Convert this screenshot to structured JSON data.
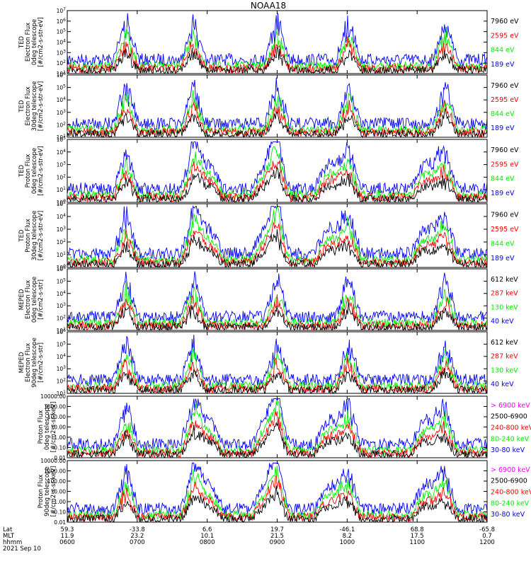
{
  "title": "NOAA18",
  "colors": {
    "blue": "#0000ff",
    "red": "#ff0000",
    "green": "#00ee00",
    "black": "#000000",
    "magenta": "#ff00ff"
  },
  "chart_data": [
    {
      "type": "line",
      "title": "",
      "ylabel": [
        "TED",
        "Electron Flux",
        "0deg telescope",
        "[#/cm2-s-str-eV]"
      ],
      "yticks": [
        "10^1",
        "10^2",
        "10^3",
        "10^4",
        "10^5",
        "10^6",
        "10^7"
      ],
      "series": [
        {
          "name": "7960 eV",
          "color": "black"
        },
        {
          "name": "2595 eV",
          "color": "red"
        },
        {
          "name": "844 eV",
          "color": "green"
        },
        {
          "name": "189 eV",
          "color": "blue"
        }
      ]
    },
    {
      "type": "line",
      "title": "",
      "ylabel": [
        "TED",
        "Electron Flux",
        "30deg telescope",
        "[#/cm2-s-str-eV]"
      ],
      "yticks": [
        "10^1",
        "10^2",
        "10^3",
        "10^4",
        "10^5",
        "10^6"
      ],
      "series": [
        {
          "name": "7960 eV",
          "color": "black"
        },
        {
          "name": "2595 eV",
          "color": "red"
        },
        {
          "name": "844 eV",
          "color": "green"
        },
        {
          "name": "189 eV",
          "color": "blue"
        }
      ]
    },
    {
      "type": "line",
      "title": "",
      "ylabel": [
        "TED",
        "Proton Flux",
        "0deg telescope",
        "[#/cm2-s-str-eV]"
      ],
      "yticks": [
        "10^0",
        "10^1",
        "10^2",
        "10^3",
        "10^4",
        "10^5"
      ],
      "series": [
        {
          "name": "7960 eV",
          "color": "black"
        },
        {
          "name": "2595 eV",
          "color": "red"
        },
        {
          "name": "844 eV",
          "color": "green"
        },
        {
          "name": "189 eV",
          "color": "blue"
        }
      ]
    },
    {
      "type": "line",
      "title": "",
      "ylabel": [
        "TED",
        "Proton Flux",
        "30deg telescope",
        "[#/cm2-s-str-eV]"
      ],
      "yticks": [
        "10^0",
        "10^1",
        "10^2",
        "10^3",
        "10^4",
        "10^5"
      ],
      "series": [
        {
          "name": "7960 eV",
          "color": "black"
        },
        {
          "name": "2595 eV",
          "color": "red"
        },
        {
          "name": "844 eV",
          "color": "green"
        },
        {
          "name": "189 eV",
          "color": "blue"
        }
      ]
    },
    {
      "type": "line",
      "title": "",
      "ylabel": [
        "MEPED",
        "Electron Flux",
        "0deg telescope",
        "[#/cm2-s-str]"
      ],
      "yticks": [
        "10^1",
        "10^2",
        "10^3",
        "10^4",
        "10^5",
        "10^6"
      ],
      "series": [
        {
          "name": "612 keV",
          "color": "black"
        },
        {
          "name": "287 keV",
          "color": "red"
        },
        {
          "name": "130 keV",
          "color": "green"
        },
        {
          "name": "40 keV",
          "color": "blue"
        }
      ]
    },
    {
      "type": "line",
      "title": "",
      "ylabel": [
        "MEPED",
        "Electron Flux",
        "90deg telescope",
        "[#/cm2-s-str]"
      ],
      "yticks": [
        "10^1",
        "10^2",
        "10^3",
        "10^4",
        "10^5",
        "10^6"
      ],
      "series": [
        {
          "name": "612 keV",
          "color": "black"
        },
        {
          "name": "287 keV",
          "color": "red"
        },
        {
          "name": "130 keV",
          "color": "green"
        },
        {
          "name": "40 keV",
          "color": "blue"
        }
      ]
    },
    {
      "type": "line",
      "title": "",
      "ylabel": [
        "Proton Flux",
        "0deg telescope",
        "[#/cm2-s-sr-keV]"
      ],
      "yticks": [
        "0.01",
        "0.10",
        "1.00",
        "10.00",
        "100.00",
        "1000.00",
        "10000.00"
      ],
      "series": [
        {
          "name": "> 6900 keV",
          "color": "magenta"
        },
        {
          "name": "2500-6900",
          "color": "black"
        },
        {
          "name": "240-800 keV",
          "color": "red"
        },
        {
          "name": "80-240 keV",
          "color": "green"
        },
        {
          "name": "30-80 keV",
          "color": "blue"
        }
      ]
    },
    {
      "type": "line",
      "title": "",
      "ylabel": [
        "Proton Flux",
        "90deg telescope",
        "[#/cm2-s-sr-keV]"
      ],
      "yticks": [
        "0.01",
        "0.10",
        "1.00",
        "10.00",
        "100.00",
        "1000.00",
        "10000.00"
      ],
      "series": [
        {
          "name": "> 6900 keV",
          "color": "magenta"
        },
        {
          "name": "2500-6900",
          "color": "black"
        },
        {
          "name": "240-800 keV",
          "color": "red"
        },
        {
          "name": "80-240 keV",
          "color": "green"
        },
        {
          "name": "30-80 keV",
          "color": "blue"
        }
      ]
    }
  ],
  "xaxis": {
    "row_labels": [
      "Lat",
      "MLT",
      "hhmm"
    ],
    "ticks": [
      {
        "lat": "59.3",
        "mlt": "11.9",
        "hhmm": "0600"
      },
      {
        "lat": "-33.8",
        "mlt": "23.2",
        "hhmm": "0700"
      },
      {
        "lat": "6.6",
        "mlt": "10.1",
        "hhmm": "0800"
      },
      {
        "lat": "19.7",
        "mlt": "21.5",
        "hhmm": "0900"
      },
      {
        "lat": "-46.1",
        "mlt": "8.2",
        "hhmm": "1000"
      },
      {
        "lat": "68.8",
        "mlt": "17.5",
        "hhmm": "1100"
      },
      {
        "lat": "-65.8",
        "mlt": "0.7",
        "hhmm": "1200"
      }
    ]
  },
  "date": "2021 Sep 10"
}
